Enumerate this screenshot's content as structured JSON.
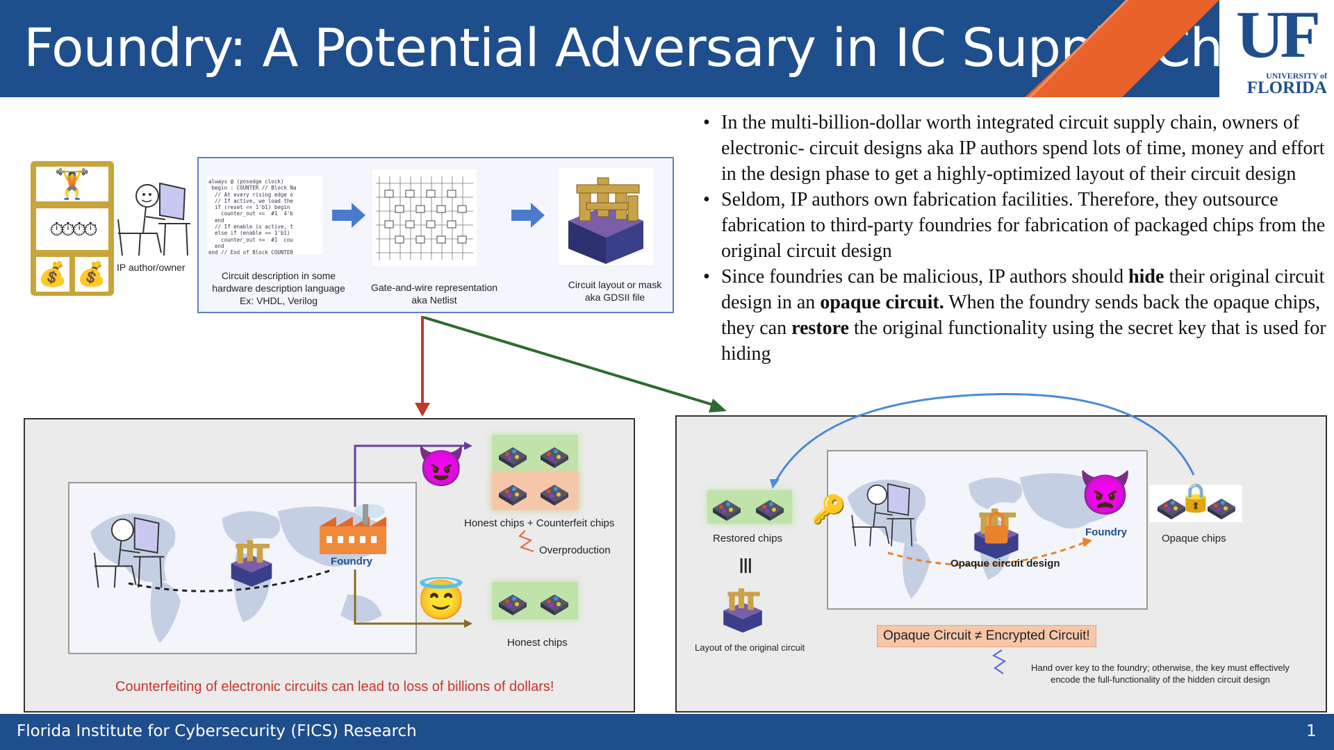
{
  "header": {
    "title": "Foundry: A Potential Adversary in IC Supply Chain",
    "logo_top": "UF",
    "logo_university": "UNIVERSITY of",
    "logo_florida": "FLORIDA"
  },
  "footer": {
    "text": "Florida Institute for Cybersecurity (FICS) Research",
    "page_number": "1"
  },
  "flow": {
    "ip_author_label": "IP author/owner",
    "code_lines": "always @ (posedge clock)\n begin : COUNTER // Block Na\n  // At every rising edge o\n  // If active, we load the\n  if (reset == 1'b1) begin\n    counter_out <=  #1  4'b\n  end\n  // If enable is active, t\n  else if (enable == 1'b1)\n    counter_out <=  #1  cou\n  end\nend // End of Block COUNTER",
    "step1_caption_l1": "Circuit description in some",
    "step1_caption_l2": "hardware description language",
    "step1_caption_l3": "Ex: VHDL, Verilog",
    "step2_caption_l1": "Gate-and-wire representation",
    "step2_caption_l2": "aka Netlist",
    "step3_caption_l1": "Circuit layout or mask",
    "step3_caption_l2": "aka GDSII file"
  },
  "bullets": {
    "b1": "In the multi-billion-dollar worth integrated circuit supply chain, owners  of electronic- circuit designs aka IP authors spend lots of time, money and effort in the design phase to get a highly-optimized layout of their circuit design",
    "b2": "Seldom, IP authors own fabrication facilities. Therefore, they outsource fabrication to third-party foundries for fabrication of packaged chips from the original circuit design",
    "b3_part1": "Since foundries can be malicious, IP authors should ",
    "b3_bold1": "hide",
    "b3_part2": " their original circuit design in an ",
    "b3_bold2": "opaque circuit.",
    "b3_part3": " When the foundry sends back the opaque chips, they can ",
    "b3_bold3": "restore",
    "b3_part4": " the original functionality using the secret key that is used for hiding"
  },
  "left_panel": {
    "foundry_label": "Foundry",
    "honest_counterfeit_label": "Honest chips + Counterfeit chips",
    "overproduction_label": "Overproduction",
    "honest_label": "Honest chips",
    "warning": "Counterfeiting of electronic circuits can lead to loss of billions of dollars!",
    "devil_emoji": "😈",
    "angel_emoji": "😇"
  },
  "right_panel": {
    "restored_label": "Restored chips",
    "equiv_symbol": "|||",
    "original_layout_label": "Layout of the original circuit",
    "foundry_label": "Foundry",
    "opaque_design_label": "Opaque circuit design",
    "opaque_chips_label": "Opaque chips",
    "note": "Opaque Circuit ≠ Encrypted Circuit!",
    "handover_l1": "Hand over key to the foundry; otherwise, the key must effectively",
    "handover_l2": "encode the full-functionality of the hidden circuit design",
    "pleading_devil": "👿",
    "key_icon": "🔑",
    "lock_icon": "🔒"
  },
  "colors": {
    "brand_blue": "#1f4e8c",
    "brand_orange": "#e8622b",
    "arrow_red": "#c0392b",
    "arrow_green": "#2e6b2e",
    "arrow_purple": "#6a3d9a",
    "arrow_brown": "#8a6a2a",
    "flow_arrow": "#4a7acc"
  }
}
